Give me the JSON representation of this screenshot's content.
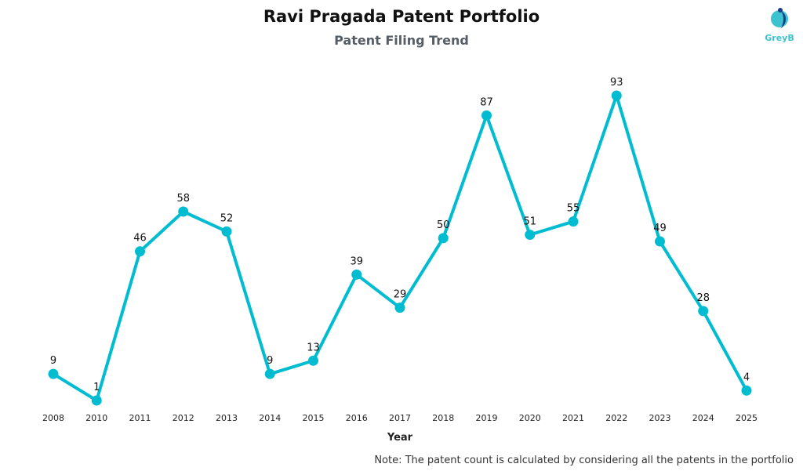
{
  "chart_data": {
    "type": "line",
    "title": "Ravi Pragada Patent Portfolio",
    "subtitle": "Patent Filing Trend",
    "xlabel": "Year",
    "ylabel": "",
    "categories": [
      "2008",
      "2010",
      "2011",
      "2012",
      "2013",
      "2014",
      "2015",
      "2016",
      "2017",
      "2018",
      "2019",
      "2020",
      "2021",
      "2022",
      "2023",
      "2024",
      "2025"
    ],
    "values": [
      9,
      1,
      46,
      58,
      52,
      9,
      13,
      39,
      29,
      50,
      87,
      51,
      55,
      93,
      49,
      28,
      4
    ],
    "ylim": [
      0,
      93
    ],
    "grid": false,
    "legend": "none",
    "color": "#00bcd0"
  },
  "note": "Note: The patent count is calculated by considering all the patents in the portfolio",
  "logo": {
    "text": "GreyB",
    "colors": [
      "#3cc3cf",
      "#1e3a8a"
    ]
  }
}
